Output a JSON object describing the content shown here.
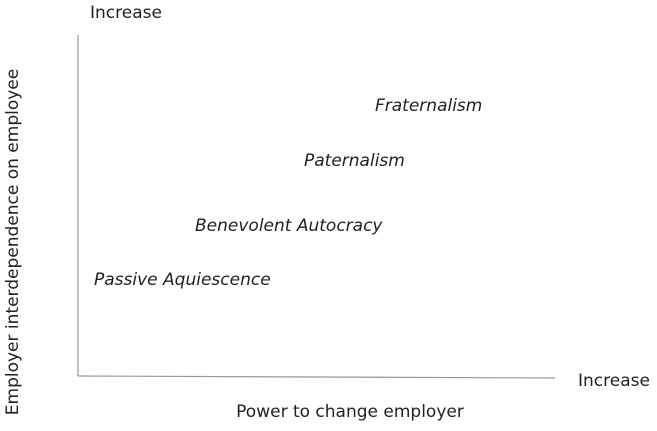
{
  "axes": {
    "y_label": "Employer interdependence on employee",
    "y_end": "Increase",
    "x_label": "Power to change employer",
    "x_end": "Increase"
  },
  "items": [
    {
      "label": "Fraternalism"
    },
    {
      "label": "Paternalism"
    },
    {
      "label": "Benevolent Autocracy"
    },
    {
      "label": "Passive Aquiescence"
    }
  ]
}
